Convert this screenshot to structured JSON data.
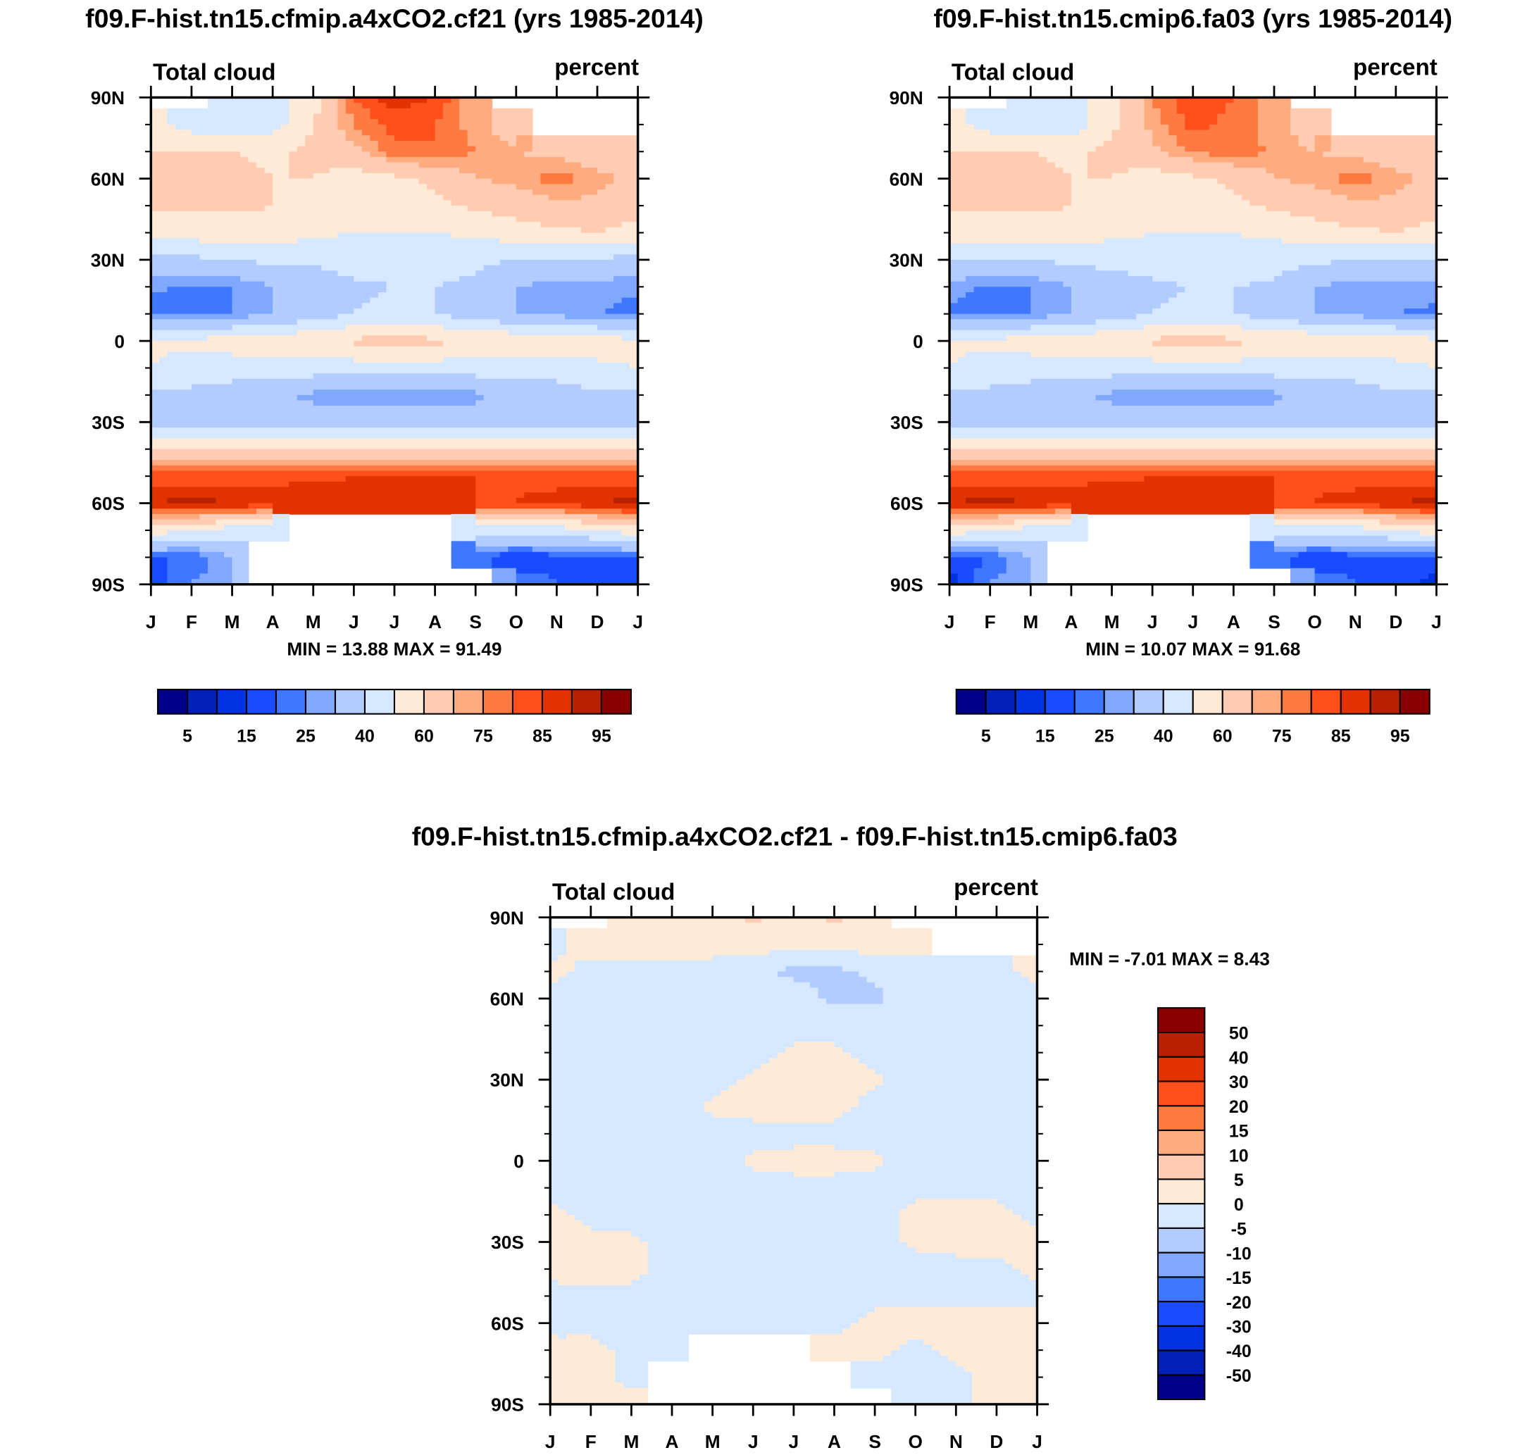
{
  "colors": {
    "abs": [
      "#00008a",
      "#0020b8",
      "#0033e0",
      "#1a4cff",
      "#4077ff",
      "#80a8ff",
      "#b3ccff",
      "#d6e8ff",
      "#ffead8",
      "#ffccb3",
      "#ffab80",
      "#ff7a40",
      "#ff4f1a",
      "#e03300",
      "#b82000",
      "#8a0000"
    ],
    "diff": [
      "#00008a",
      "#0020b8",
      "#0033e0",
      "#1a4cff",
      "#4077ff",
      "#80a8ff",
      "#b3ccff",
      "#d6e8ff",
      "#ffead8",
      "#ffccb3",
      "#ffab80",
      "#ff7a40",
      "#ff4f1a",
      "#e03300",
      "#b82000",
      "#8a0000"
    ]
  },
  "chart_data": [
    {
      "type": "heatmap",
      "title": "f09.F-hist.tn15.cfmip.a4xCO2.cf21 (yrs 1985-2014)",
      "left_label": "Total cloud",
      "right_label": "percent",
      "x_ticks": [
        "J",
        "F",
        "M",
        "A",
        "M",
        "J",
        "J",
        "A",
        "S",
        "O",
        "N",
        "D",
        "J"
      ],
      "y_ticks": [
        "90N",
        "60N",
        "30N",
        "0",
        "30S",
        "60S",
        "90S"
      ],
      "y_range": [
        -90,
        90
      ],
      "lat": [
        90,
        80,
        70,
        60,
        50,
        40,
        30,
        20,
        10,
        0,
        -10,
        -20,
        -30,
        -40,
        -50,
        -60,
        -70,
        -80,
        -90
      ],
      "minmax": "MIN =  13.88 MAX =  91.49",
      "levels": [
        5,
        10,
        15,
        20,
        25,
        30,
        40,
        50,
        60,
        70,
        75,
        80,
        85,
        90,
        95
      ],
      "colorbar_labels": [
        "5",
        "15",
        "25",
        "40",
        "60",
        "75",
        "85",
        "95"
      ],
      "z": [
        [
          null,
          null,
          45,
          45,
          55,
          80,
          88,
          85,
          70,
          null,
          null,
          null,
          null
        ],
        [
          55,
          45,
          45,
          45,
          60,
          75,
          82,
          80,
          72,
          65,
          null,
          null,
          null
        ],
        [
          60,
          60,
          60,
          58,
          62,
          68,
          78,
          80,
          75,
          70,
          68,
          65,
          62
        ],
        [
          65,
          62,
          62,
          60,
          60,
          55,
          58,
          62,
          70,
          72,
          78,
          72,
          68
        ],
        [
          62,
          62,
          62,
          60,
          58,
          55,
          55,
          58,
          62,
          65,
          68,
          68,
          65
        ],
        [
          55,
          55,
          55,
          55,
          52,
          50,
          50,
          50,
          52,
          55,
          58,
          60,
          55
        ],
        [
          38,
          38,
          40,
          42,
          42,
          45,
          45,
          45,
          42,
          40,
          38,
          38,
          38
        ],
        [
          26,
          24,
          25,
          30,
          33,
          38,
          40,
          40,
          38,
          30,
          27,
          27,
          26
        ],
        [
          23,
          22,
          25,
          30,
          35,
          40,
          42,
          40,
          35,
          30,
          28,
          25,
          23
        ],
        [
          52,
          52,
          55,
          55,
          58,
          62,
          63,
          62,
          60,
          58,
          55,
          55,
          52
        ],
        [
          50,
          45,
          45,
          45,
          45,
          45,
          45,
          45,
          45,
          45,
          45,
          48,
          50
        ],
        [
          38,
          38,
          35,
          32,
          28,
          25,
          25,
          25,
          28,
          33,
          35,
          38,
          38
        ],
        [
          35,
          35,
          35,
          35,
          35,
          35,
          35,
          35,
          35,
          35,
          35,
          35,
          35
        ],
        [
          62,
          62,
          62,
          62,
          62,
          62,
          62,
          62,
          62,
          62,
          62,
          62,
          62
        ],
        [
          82,
          82,
          82,
          83,
          84,
          85,
          86,
          86,
          85,
          84,
          83,
          82,
          82
        ],
        [
          90,
          92,
          90,
          89,
          88,
          86,
          85,
          85,
          85,
          85,
          87,
          90,
          92
        ],
        [
          55,
          50,
          45,
          40,
          null,
          null,
          null,
          null,
          45,
          45,
          45,
          50,
          55
        ],
        [
          20,
          20,
          30,
          null,
          null,
          null,
          null,
          null,
          20,
          15,
          18,
          20,
          20
        ],
        [
          15,
          25,
          30,
          null,
          null,
          null,
          null,
          null,
          null,
          25,
          20,
          18,
          15
        ]
      ]
    },
    {
      "type": "heatmap",
      "title": "f09.F-hist.tn15.cmip6.fa03 (yrs 1985-2014)",
      "left_label": "Total cloud",
      "right_label": "percent",
      "x_ticks": [
        "J",
        "F",
        "M",
        "A",
        "M",
        "J",
        "J",
        "A",
        "S",
        "O",
        "N",
        "D",
        "J"
      ],
      "y_ticks": [
        "90N",
        "60N",
        "30N",
        "0",
        "30S",
        "60S",
        "90S"
      ],
      "y_range": [
        -90,
        90
      ],
      "lat": [
        90,
        80,
        70,
        60,
        50,
        40,
        30,
        20,
        10,
        0,
        -10,
        -20,
        -30,
        -40,
        -50,
        -60,
        -70,
        -80,
        -90
      ],
      "minmax": "MIN =  10.07 MAX =  91.68",
      "levels": [
        5,
        10,
        15,
        20,
        25,
        30,
        40,
        50,
        60,
        70,
        75,
        80,
        85,
        90,
        95
      ],
      "colorbar_labels": [
        "5",
        "15",
        "25",
        "40",
        "60",
        "75",
        "85",
        "95"
      ],
      "z": [
        [
          null,
          null,
          45,
          45,
          55,
          75,
          84,
          80,
          70,
          null,
          null,
          null,
          null
        ],
        [
          55,
          45,
          45,
          45,
          58,
          72,
          82,
          78,
          72,
          65,
          null,
          null,
          null
        ],
        [
          60,
          60,
          60,
          58,
          62,
          68,
          76,
          78,
          74,
          70,
          68,
          65,
          62
        ],
        [
          65,
          62,
          62,
          60,
          60,
          55,
          58,
          62,
          70,
          72,
          78,
          72,
          68
        ],
        [
          62,
          62,
          62,
          60,
          58,
          55,
          55,
          58,
          62,
          65,
          68,
          68,
          65
        ],
        [
          55,
          55,
          55,
          55,
          52,
          50,
          50,
          50,
          52,
          55,
          58,
          60,
          55
        ],
        [
          40,
          40,
          40,
          42,
          44,
          45,
          46,
          46,
          44,
          42,
          40,
          40,
          40
        ],
        [
          27,
          24,
          25,
          30,
          33,
          38,
          40,
          40,
          38,
          30,
          27,
          27,
          27
        ],
        [
          24,
          22,
          25,
          30,
          35,
          40,
          42,
          40,
          35,
          30,
          28,
          25,
          24
        ],
        [
          52,
          52,
          55,
          55,
          58,
          62,
          63,
          62,
          60,
          58,
          55,
          55,
          52
        ],
        [
          50,
          45,
          45,
          45,
          45,
          45,
          45,
          45,
          45,
          45,
          45,
          48,
          50
        ],
        [
          38,
          38,
          35,
          32,
          28,
          25,
          25,
          25,
          28,
          33,
          35,
          38,
          38
        ],
        [
          35,
          35,
          35,
          35,
          35,
          35,
          35,
          35,
          35,
          35,
          35,
          35,
          35
        ],
        [
          62,
          62,
          62,
          62,
          62,
          62,
          62,
          62,
          62,
          62,
          62,
          62,
          62
        ],
        [
          82,
          82,
          82,
          83,
          84,
          85,
          86,
          86,
          85,
          84,
          83,
          82,
          82
        ],
        [
          90,
          92,
          90,
          89,
          88,
          86,
          85,
          85,
          85,
          85,
          87,
          90,
          92
        ],
        [
          55,
          50,
          45,
          40,
          null,
          null,
          null,
          null,
          45,
          45,
          45,
          50,
          55
        ],
        [
          18,
          20,
          30,
          null,
          null,
          null,
          null,
          null,
          20,
          15,
          18,
          20,
          18
        ],
        [
          12,
          25,
          30,
          null,
          null,
          null,
          null,
          null,
          null,
          25,
          20,
          18,
          12
        ]
      ]
    },
    {
      "type": "heatmap",
      "title": "f09.F-hist.tn15.cfmip.a4xCO2.cf21 - f09.F-hist.tn15.cmip6.fa03",
      "left_label": "Total cloud",
      "right_label": "percent",
      "x_ticks": [
        "J",
        "F",
        "M",
        "A",
        "M",
        "J",
        "J",
        "A",
        "S",
        "O",
        "N",
        "D",
        "J"
      ],
      "y_ticks": [
        "90N",
        "60N",
        "30N",
        "0",
        "30S",
        "60S",
        "90S"
      ],
      "y_range": [
        -90,
        90
      ],
      "lat": [
        90,
        80,
        70,
        60,
        50,
        40,
        30,
        20,
        10,
        0,
        -10,
        -20,
        -30,
        -40,
        -50,
        -60,
        -70,
        -80,
        -90
      ],
      "minmax": "MIN =  -7.01 MAX =   8.43",
      "levels": [
        -50,
        -40,
        -30,
        -20,
        -15,
        -10,
        -5,
        0,
        5,
        10,
        15,
        20,
        30,
        40,
        50
      ],
      "colorbar_labels": [
        "-50",
        "-40",
        "-30",
        "-20",
        "-15",
        "-10",
        "-5",
        "0",
        "5",
        "10",
        "15",
        "20",
        "30",
        "40",
        "50"
      ],
      "z": [
        [
          null,
          null,
          2,
          2,
          2,
          6,
          3,
          6,
          2,
          null,
          null,
          null,
          null
        ],
        [
          -2,
          2,
          2,
          2,
          2,
          2,
          2,
          2,
          2,
          2,
          null,
          null,
          null
        ],
        [
          2,
          -2,
          -2,
          -2,
          -2,
          -4,
          -6,
          -6,
          -4,
          -2,
          -2,
          -2,
          2
        ],
        [
          -2,
          -2,
          -2,
          -2,
          -2,
          -2,
          -3,
          -6,
          -6,
          -2,
          -2,
          -2,
          -2
        ],
        [
          -2,
          -2,
          -2,
          -2,
          -2,
          -2,
          -2,
          -2,
          -2,
          -2,
          -2,
          -2,
          -2
        ],
        [
          -2,
          -2,
          -2,
          -2,
          -2,
          -2,
          1,
          1,
          -2,
          -2,
          -2,
          -2,
          -2
        ],
        [
          -2,
          -2,
          -2,
          -2,
          -2,
          1,
          2,
          2,
          1,
          -2,
          -2,
          -2,
          -2
        ],
        [
          -2,
          -2,
          -2,
          -2,
          1,
          2,
          2,
          2,
          -2,
          -2,
          -2,
          -2,
          -2
        ],
        [
          -2,
          -2,
          -2,
          -2,
          -2,
          -2,
          -2,
          -2,
          -2,
          -2,
          -2,
          -2,
          -2
        ],
        [
          -2,
          -2,
          -2,
          -2,
          -2,
          1,
          2,
          2,
          1,
          -2,
          -2,
          -2,
          -2
        ],
        [
          -2,
          -2,
          -2,
          -2,
          -2,
          -2,
          -2,
          -2,
          -2,
          -2,
          -2,
          -2,
          -2
        ],
        [
          2,
          -2,
          -2,
          -2,
          -2,
          -2,
          -2,
          -2,
          -2,
          2,
          2,
          2,
          -2
        ],
        [
          2,
          2,
          1,
          -2,
          -2,
          -2,
          -2,
          -2,
          -2,
          1,
          2,
          2,
          2
        ],
        [
          2,
          2,
          2,
          -2,
          -2,
          -2,
          -2,
          -2,
          -2,
          -2,
          -2,
          -2,
          2
        ],
        [
          -2,
          -2,
          -2,
          -2,
          -2,
          -2,
          -2,
          -2,
          -2,
          -2,
          -2,
          -2,
          -2
        ],
        [
          -2,
          -2,
          -2,
          -2,
          -2,
          -2,
          -2,
          -2,
          2,
          2,
          2,
          2,
          2
        ],
        [
          2,
          2,
          -2,
          -2,
          null,
          null,
          null,
          2,
          2,
          -2,
          2,
          2,
          2
        ],
        [
          2,
          2,
          -2,
          null,
          null,
          null,
          null,
          null,
          -2,
          -2,
          -2,
          2,
          2
        ],
        [
          2,
          2,
          2,
          null,
          null,
          null,
          null,
          null,
          null,
          -2,
          -2,
          2,
          2
        ]
      ]
    }
  ]
}
